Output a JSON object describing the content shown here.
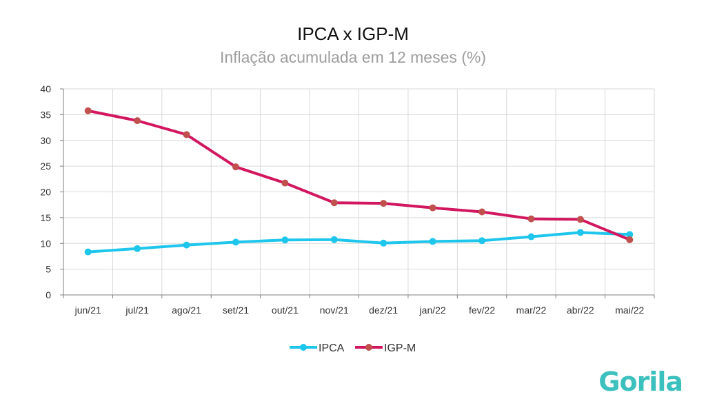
{
  "chart_data": {
    "type": "line",
    "title": "IPCA x IGP-M",
    "subtitle": "Inflação acumulada em 12 meses (%)",
    "categories": [
      "jun/21",
      "jul/21",
      "ago/21",
      "set/21",
      "out/21",
      "nov/21",
      "dez/21",
      "jan/22",
      "fev/22",
      "mar/22",
      "abr/22",
      "mai/22"
    ],
    "ylim": [
      0,
      40
    ],
    "yticks": [
      0,
      5,
      10,
      15,
      20,
      25,
      30,
      35,
      40
    ],
    "grid": true,
    "legend_position": "bottom",
    "series": [
      {
        "name": "IPCA",
        "line_color": "#1ec6ec",
        "marker_color": "#1ec6ec",
        "values": [
          8.35,
          8.99,
          9.68,
          10.25,
          10.67,
          10.74,
          10.06,
          10.38,
          10.54,
          11.3,
          12.13,
          11.73
        ]
      },
      {
        "name": "IGP-M",
        "line_color": "#d2165f",
        "marker_color": "#c0504d",
        "values": [
          35.75,
          33.83,
          31.12,
          24.86,
          21.73,
          17.89,
          17.78,
          16.91,
          16.12,
          14.77,
          14.66,
          10.72
        ]
      }
    ]
  },
  "brand": {
    "logo_text": "Gorila",
    "color": "#3cc0bd"
  }
}
